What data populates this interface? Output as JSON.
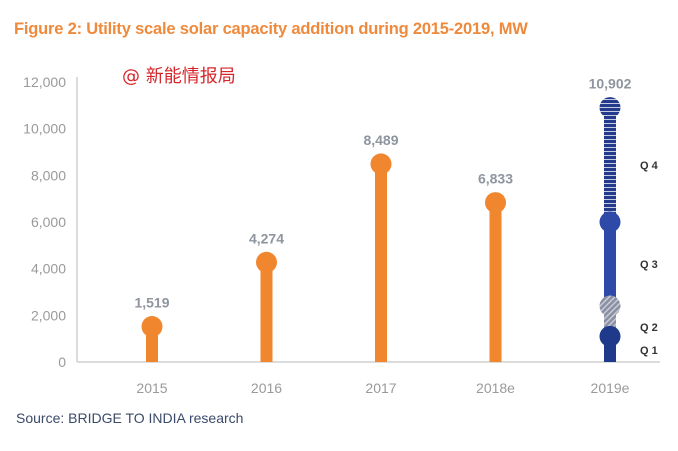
{
  "chart_data": {
    "type": "bar",
    "title": "Figure 2: Utility scale solar capacity addition during 2015-2019, MW",
    "watermark": "@ 新能情报局",
    "source": "Source: BRIDGE TO INDIA research",
    "xlabel": "",
    "ylabel": "",
    "ylim": [
      0,
      12000
    ],
    "yticks": [
      0,
      2000,
      4000,
      6000,
      8000,
      10000,
      12000
    ],
    "ytick_labels": [
      "0",
      "2,000",
      "4,000",
      "6,000",
      "8,000",
      "10,000",
      "12,000"
    ],
    "categories": [
      "2015",
      "2016",
      "2017",
      "2018e",
      "2019e"
    ],
    "values": [
      1519,
      4274,
      8489,
      6833,
      10902
    ],
    "data_labels": [
      "1,519",
      "4,274",
      "8,489",
      "6,833",
      "10,902"
    ],
    "grid": false,
    "colors": {
      "actual": "#f0862e",
      "q1": "#1f3a8a",
      "q2": "#8a8fa3",
      "q3": "#2e4aa8",
      "q4": "#243a8c",
      "axis": "#d0d0d0"
    },
    "stacked_2019e": {
      "category": "2019e",
      "segments": [
        {
          "name": "Q 1",
          "cumulative_top": 1100
        },
        {
          "name": "Q 2",
          "cumulative_top": 2400
        },
        {
          "name": "Q 3",
          "cumulative_top": 6000
        },
        {
          "name": "Q 4",
          "cumulative_top": 10902
        }
      ]
    }
  }
}
